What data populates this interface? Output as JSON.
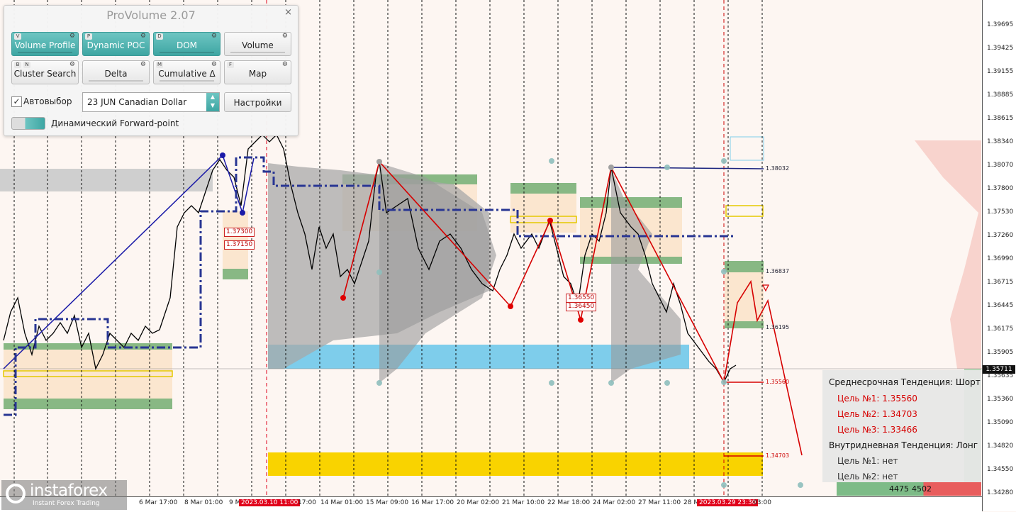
{
  "panel": {
    "title": "ProVolume 2.07",
    "close_icon": "×",
    "buttons": [
      {
        "label": "Volume Profile",
        "keys": [
          "V"
        ],
        "active": true
      },
      {
        "label": "Dynamic POC",
        "keys": [
          "P"
        ],
        "active": true
      },
      {
        "label": "DOM",
        "keys": [
          "D"
        ],
        "active": true
      },
      {
        "label": "Volume",
        "keys": [],
        "active": false
      },
      {
        "label": "Cluster Search",
        "keys": [
          "B",
          "N"
        ],
        "active": false
      },
      {
        "label": "Delta",
        "keys": [],
        "active": false
      },
      {
        "label": "Cumulative Δ",
        "keys": [
          "M"
        ],
        "active": false
      },
      {
        "label": "Map",
        "keys": [
          "F"
        ],
        "active": false
      }
    ],
    "auto_select_label": "Автовыбор",
    "auto_select_checked": true,
    "instrument": "23 JUN Canadian Dollar",
    "settings_label": "Настройки",
    "forward_point_label": "Динамический Forward-point"
  },
  "price_axis": {
    "ticks": [
      "1.39695",
      "1.39425",
      "1.39155",
      "1.38885",
      "1.38615",
      "1.38340",
      "1.38070",
      "1.37800",
      "1.37530",
      "1.37260",
      "1.36990",
      "1.36715",
      "1.36445",
      "1.36175",
      "1.35905",
      "1.35635",
      "1.35360",
      "1.35090",
      "1.34820",
      "1.34550",
      "1.34280"
    ],
    "current_price": "1.35711"
  },
  "time_axis": {
    "labels": [
      {
        "text": "6 Mar 17:00",
        "highlight": false
      },
      {
        "text": "8 Mar 01:00",
        "highlight": false
      },
      {
        "text": "9 M",
        "highlight": false
      },
      {
        "text": "2023.03.10 11:00",
        "highlight": true
      },
      {
        "text": "17:00",
        "highlight": false
      },
      {
        "text": "14 Mar 01:00",
        "highlight": false
      },
      {
        "text": "15 Mar 09:00",
        "highlight": false
      },
      {
        "text": "16 Mar 17:00",
        "highlight": false
      },
      {
        "text": "20 Mar 02:00",
        "highlight": false
      },
      {
        "text": "21 Mar 10:00",
        "highlight": false
      },
      {
        "text": "22 Mar 18:00",
        "highlight": false
      },
      {
        "text": "24 Mar 02:00",
        "highlight": false
      },
      {
        "text": "27 Mar 11:00",
        "highlight": false
      },
      {
        "text": "28 M",
        "highlight": false
      },
      {
        "text": "2023.03.29 23:30",
        "highlight": true
      },
      {
        "text": "03:00",
        "highlight": false
      }
    ]
  },
  "levels": {
    "tags_red": [
      "1.37300",
      "1.37150",
      "1.36550",
      "1.36450"
    ],
    "tags_plain": [
      "1.38032",
      "1.36837",
      "1.36195",
      "1.35560",
      "1.34703"
    ]
  },
  "trend_box": {
    "mid_title": "Среднесрочная Тенденция: Шорт",
    "mid_targets": [
      "Цель №1: 1.35560",
      "Цель №2: 1.34703",
      "Цель №3: 1.33466"
    ],
    "intra_title": "Внутридневная Тенденция: Лонг",
    "intra_targets": [
      "Цель №1: нет",
      "Цель №2: нет"
    ],
    "colors": {
      "short_target": "#d60000",
      "text": "#111111"
    }
  },
  "volume_bar": {
    "buy": "4475",
    "sell": "4502"
  },
  "logo": {
    "brand": "instaforex",
    "tagline": "Instant Forex Trading"
  }
}
